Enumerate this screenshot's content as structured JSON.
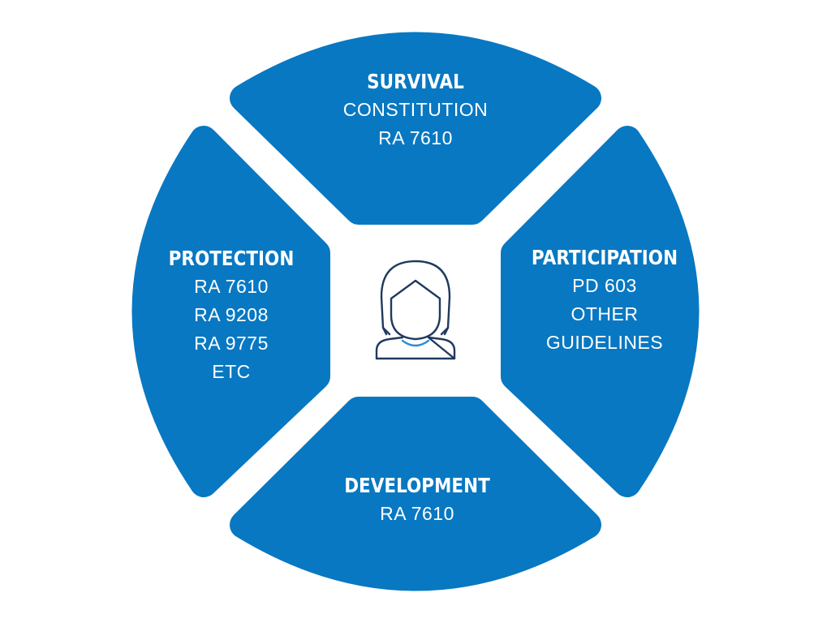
{
  "diagram": {
    "segments": {
      "survival": {
        "title": "SURVIVAL",
        "items": [
          "CONSTITUTION",
          "RA 7610"
        ]
      },
      "protection": {
        "title": "PROTECTION",
        "items": [
          "RA 7610",
          "RA 9208",
          "RA 9775",
          "ETC"
        ]
      },
      "participation": {
        "title": "PARTICIPATION",
        "items": [
          "PD 603",
          "OTHER",
          "GUIDELINES"
        ]
      },
      "development": {
        "title": "DEVELOPMENT",
        "items": [
          "RA 7610"
        ]
      }
    },
    "center_icon": "child-avatar-icon",
    "colors": {
      "segment_fill": "#0878c2",
      "text": "#ffffff",
      "icon_stroke": "#1f3a5f",
      "icon_accent": "#2a8fd6",
      "background": "#ffffff"
    }
  }
}
